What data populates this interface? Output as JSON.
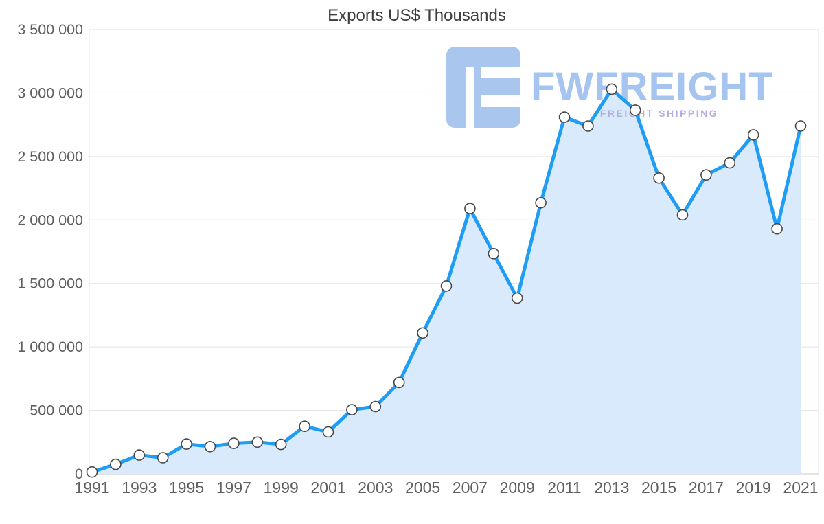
{
  "chart_data": {
    "type": "area",
    "title": "Exports US$ Thousands",
    "x": [
      1991,
      1992,
      1993,
      1994,
      1995,
      1996,
      1997,
      1998,
      1999,
      2000,
      2001,
      2002,
      2003,
      2004,
      2005,
      2006,
      2007,
      2008,
      2009,
      2010,
      2011,
      2012,
      2013,
      2014,
      2015,
      2016,
      2017,
      2018,
      2019,
      2020,
      2021
    ],
    "series": [
      {
        "name": "Exports US$ Thousands",
        "values": [
          15000,
          75000,
          148000,
          127000,
          235000,
          215000,
          240000,
          250000,
          232000,
          375000,
          330000,
          505000,
          530000,
          720000,
          1110000,
          1480000,
          2090000,
          1735000,
          1385000,
          2135000,
          2810000,
          2740000,
          3030000,
          2865000,
          2330000,
          2040000,
          2355000,
          2450000,
          2670000,
          1930000,
          2740000
        ]
      }
    ],
    "ylim": [
      0,
      3500000
    ],
    "y_ticks": [
      {
        "value": 0,
        "label": "0"
      },
      {
        "value": 500000,
        "label": "500 000"
      },
      {
        "value": 1000000,
        "label": "1 000 000"
      },
      {
        "value": 1500000,
        "label": "1 500 000"
      },
      {
        "value": 2000000,
        "label": "2 000 000"
      },
      {
        "value": 2500000,
        "label": "2 500 000"
      },
      {
        "value": 3000000,
        "label": "3 000 000"
      },
      {
        "value": 3500000,
        "label": "3 500 000"
      }
    ],
    "x_tick_labels": [
      "1991",
      "1993",
      "1995",
      "1997",
      "1999",
      "2001",
      "2003",
      "2005",
      "2007",
      "2009",
      "2011",
      "2013",
      "2015",
      "2017",
      "2019",
      "2021"
    ],
    "grid": "horizontal",
    "legend": "none",
    "colors": {
      "line": "#1f9cf4",
      "area": "#d9eafc",
      "marker_fill": "#ffffff",
      "marker_stroke": "#484848",
      "grid": "#e3e3e3",
      "axis_text": "#5f5f5f",
      "title_text": "#3d3d3d"
    }
  },
  "watermark": {
    "brand": "FWFREIGHT",
    "tagline": "FREIGHT SHIPPING",
    "colors": {
      "logo": "#a9c6ee",
      "brand_text": "#a6c4f0",
      "tagline_text": "#b3aede"
    }
  }
}
